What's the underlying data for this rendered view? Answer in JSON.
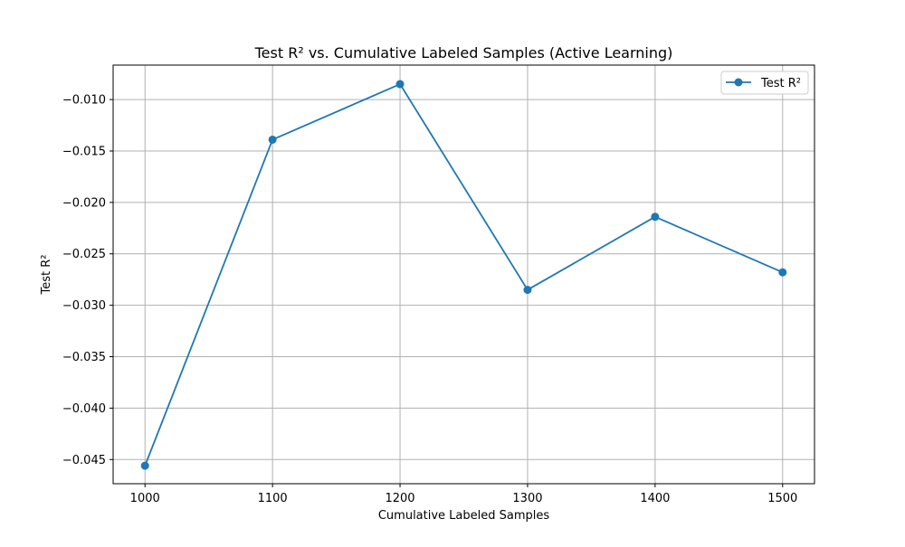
{
  "chart_data": {
    "type": "line",
    "title": "Test R² vs. Cumulative Labeled Samples (Active Learning)",
    "xlabel": "Cumulative Labeled Samples",
    "ylabel": "Test R²",
    "x": [
      1000,
      1100,
      1200,
      1300,
      1400,
      1500
    ],
    "series": [
      {
        "name": "Test R²",
        "values": [
          -0.0456,
          -0.0139,
          -0.0085,
          -0.0285,
          -0.0214,
          -0.0268
        ],
        "color": "#1f77b4",
        "marker": "circle"
      }
    ],
    "xlim": [
      975,
      1525
    ],
    "ylim": [
      -0.04735,
      -0.00665
    ],
    "x_ticks": [
      1000,
      1100,
      1200,
      1300,
      1400,
      1500
    ],
    "x_tick_labels": [
      "1000",
      "1100",
      "1200",
      "1300",
      "1400",
      "1500"
    ],
    "y_ticks": [
      -0.045,
      -0.04,
      -0.035,
      -0.03,
      -0.025,
      -0.02,
      -0.015,
      -0.01
    ],
    "y_tick_labels": [
      "−0.045",
      "−0.040",
      "−0.035",
      "−0.030",
      "−0.025",
      "−0.020",
      "−0.015",
      "−0.010"
    ],
    "grid": true,
    "legend_position": "top-right"
  }
}
